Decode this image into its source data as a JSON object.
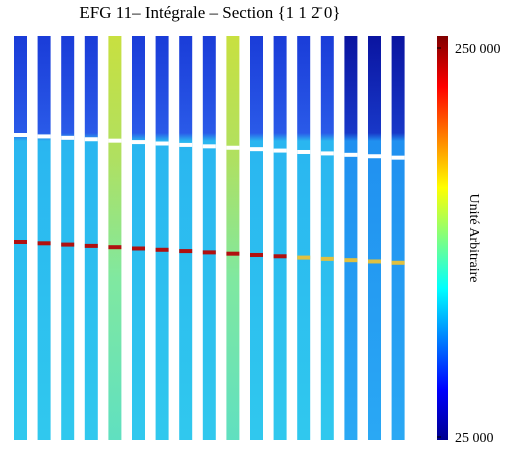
{
  "chart_data": {
    "type": "heatmap",
    "title": "EFG 11– Intégrale – Section {1 1 2̄ 0}",
    "colorbar_label": "Unité Arbitraire",
    "clim": [
      25000,
      250000
    ],
    "cticks": [
      {
        "value": 25000,
        "label": "25 000"
      },
      {
        "value": 250000,
        "label": "250 000"
      }
    ],
    "colormap": [
      "#00008f",
      "#0000ff",
      "#0080ff",
      "#00ffff",
      "#80ff80",
      "#ffff00",
      "#ff8000",
      "#ff0000",
      "#800000"
    ]
  }
}
